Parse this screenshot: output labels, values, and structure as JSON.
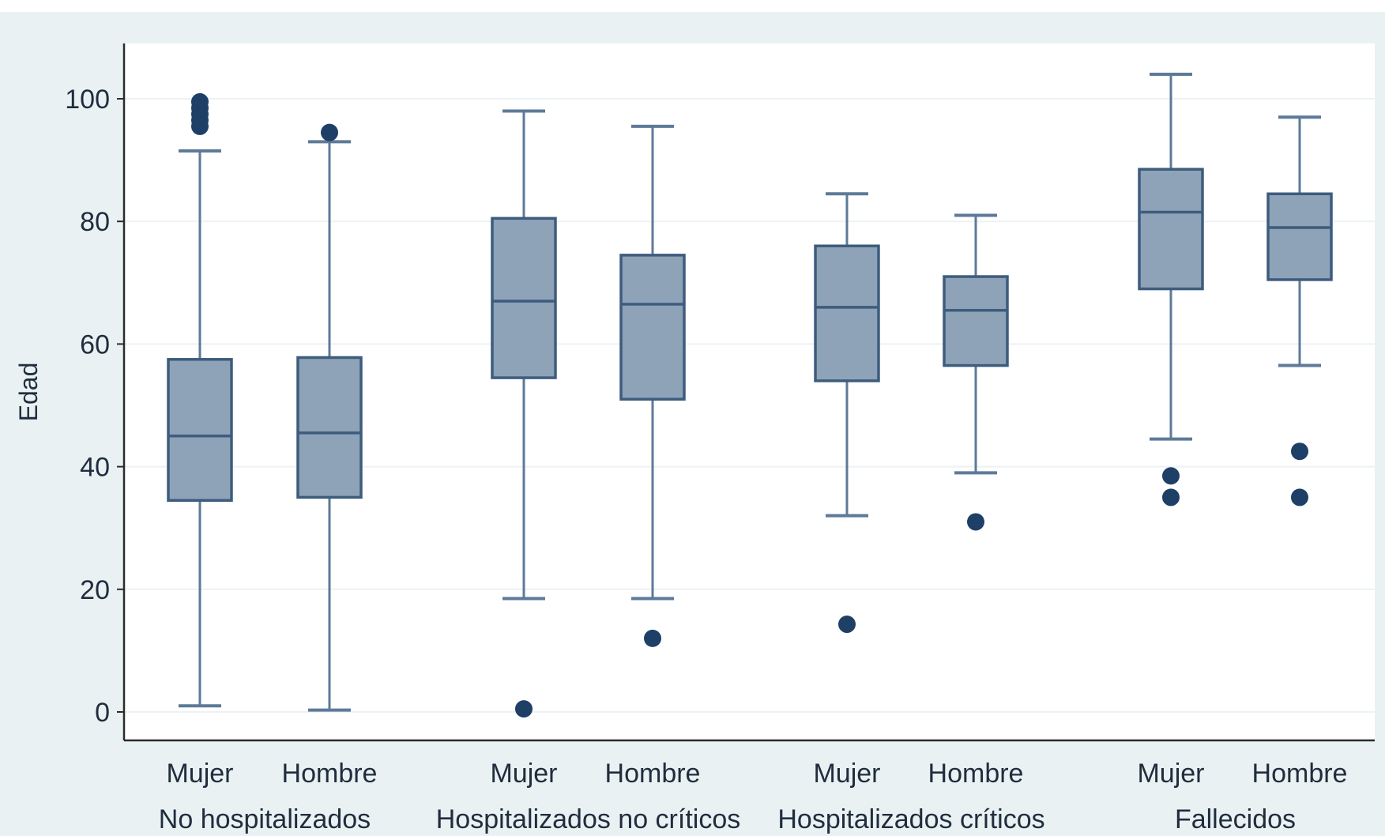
{
  "chart_data": {
    "type": "box",
    "title": "",
    "ylabel": "Edad",
    "xlabel": "",
    "ylim": [
      -5,
      110
    ],
    "yticks": [
      0,
      20,
      40,
      60,
      80,
      100
    ],
    "grid": true,
    "groups": [
      {
        "name": "No hospitalizados",
        "boxes": [
          {
            "label": "Mujer",
            "whisker_low": 1,
            "q1": 34.5,
            "median": 45,
            "q3": 57.5,
            "whisker_high": 91.5,
            "outliers": [
              95.5,
              96.5,
              97.5,
              98.5,
              99.5
            ]
          },
          {
            "label": "Hombre",
            "whisker_low": 0.3,
            "q1": 35,
            "median": 45.5,
            "q3": 57.8,
            "whisker_high": 93,
            "outliers": [
              94.5
            ]
          }
        ]
      },
      {
        "name": "Hospitalizados no críticos",
        "boxes": [
          {
            "label": "Mujer",
            "whisker_low": 18.5,
            "q1": 54.5,
            "median": 67,
            "q3": 80.5,
            "whisker_high": 98,
            "outliers": [
              0.5
            ]
          },
          {
            "label": "Hombre",
            "whisker_low": 18.5,
            "q1": 51,
            "median": 66.5,
            "q3": 74.5,
            "whisker_high": 95.5,
            "outliers": [
              12
            ]
          }
        ]
      },
      {
        "name": "Hospitalizados críticos",
        "boxes": [
          {
            "label": "Mujer",
            "whisker_low": 32,
            "q1": 54,
            "median": 66,
            "q3": 76,
            "whisker_high": 84.5,
            "outliers": [
              14.3
            ]
          },
          {
            "label": "Hombre",
            "whisker_low": 39,
            "q1": 56.5,
            "median": 65.5,
            "q3": 71,
            "whisker_high": 81,
            "outliers": [
              31
            ]
          }
        ]
      },
      {
        "name": "Fallecidos",
        "boxes": [
          {
            "label": "Mujer",
            "whisker_low": 44.5,
            "q1": 69,
            "median": 81.5,
            "q3": 88.5,
            "whisker_high": 104,
            "outliers": [
              38.5,
              35
            ]
          },
          {
            "label": "Hombre",
            "whisker_low": 56.5,
            "q1": 70.5,
            "median": 79,
            "q3": 84.5,
            "whisker_high": 97,
            "outliers": [
              42.5,
              35
            ]
          }
        ]
      }
    ]
  },
  "colors": {
    "outer_background": "#eaf1f3",
    "plot_background": "#ffffff",
    "grid": "#edf2f4",
    "box_fill": "#8ea3b7",
    "box_stroke": "#3d5c7e",
    "whisker": "#5d7a98",
    "outlier": "#1e3f66",
    "axis": "#2b2b2b",
    "text": "#1f2d3d"
  }
}
